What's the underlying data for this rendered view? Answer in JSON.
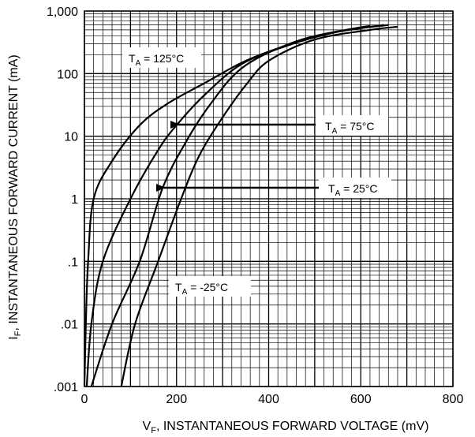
{
  "chart_data": {
    "type": "line",
    "x_scale": "linear",
    "y_scale": "log",
    "xlim": [
      0,
      800
    ],
    "ylim": [
      0.001,
      1000
    ],
    "x_ticks": [
      "0",
      "200",
      "400",
      "600",
      "800"
    ],
    "y_ticks": [
      ".001",
      ".01",
      ".1",
      "1",
      "10",
      "100",
      "1,000"
    ],
    "xlabel": {
      "pre": "V",
      "sub": "F",
      "post": ", INSTANTANEOUS FORWARD VOLTAGE (mV)"
    },
    "ylabel": {
      "pre": "I",
      "sub": "F",
      "post": ", INSTANTANEOUS FORWARD CURRENT (mA)"
    },
    "grid": true,
    "series": [
      {
        "name": "125°C",
        "label_pre": "T",
        "label_sub": "A",
        "label_post": " = 125°C",
        "points": [
          [
            0,
            0.001
          ],
          [
            3,
            0.01
          ],
          [
            8,
            0.1
          ],
          [
            20,
            1
          ],
          [
            60,
            4
          ],
          [
            120,
            15
          ],
          [
            180,
            33
          ],
          [
            260,
            70
          ],
          [
            350,
            160
          ],
          [
            450,
            300
          ],
          [
            550,
            470
          ],
          [
            620,
            580
          ]
        ]
      },
      {
        "name": "75°C",
        "label_pre": "T",
        "label_sub": "A",
        "label_post": " = 75°C",
        "points": [
          [
            5,
            0.001
          ],
          [
            15,
            0.01
          ],
          [
            40,
            0.1
          ],
          [
            100,
            1
          ],
          [
            160,
            6
          ],
          [
            200,
            15
          ],
          [
            260,
            45
          ],
          [
            340,
            140
          ],
          [
            440,
            280
          ],
          [
            540,
            450
          ],
          [
            650,
            600
          ]
        ]
      },
      {
        "name": "25°C",
        "label_pre": "T",
        "label_sub": "A",
        "label_post": " = 25°C",
        "points": [
          [
            15,
            0.001
          ],
          [
            60,
            0.01
          ],
          [
            120,
            0.1
          ],
          [
            170,
            1.5
          ],
          [
            220,
            8
          ],
          [
            270,
            30
          ],
          [
            340,
            120
          ],
          [
            440,
            290
          ],
          [
            540,
            460
          ],
          [
            660,
            600
          ]
        ]
      },
      {
        "name": "-25°C",
        "label_pre": "T",
        "label_sub": "A",
        "label_post": " = -25°C",
        "points": [
          [
            80,
            0.001
          ],
          [
            110,
            0.01
          ],
          [
            160,
            0.1
          ],
          [
            210,
            1
          ],
          [
            250,
            5
          ],
          [
            300,
            20
          ],
          [
            350,
            65
          ],
          [
            400,
            160
          ],
          [
            500,
            350
          ],
          [
            620,
            500
          ],
          [
            680,
            560
          ]
        ]
      }
    ]
  }
}
